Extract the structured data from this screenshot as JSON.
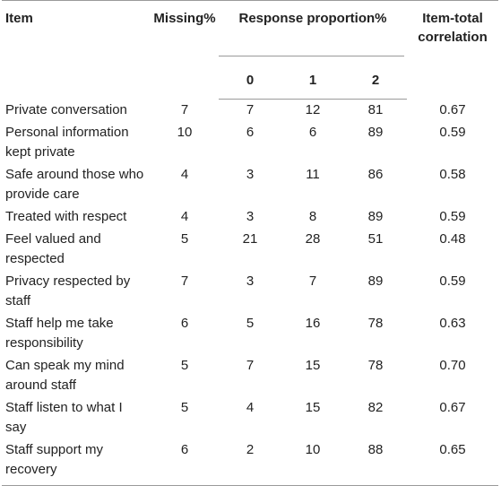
{
  "headers": {
    "item": "Item",
    "missing": "Missing%",
    "response": "Response proportion%",
    "r0": "0",
    "r1": "1",
    "r2": "2",
    "correlation_line1": "Item-total",
    "correlation_line2": "correlation"
  },
  "rows": [
    {
      "item": "Private conversation",
      "missing": "7",
      "r0": "7",
      "r1": "12",
      "r2": "81",
      "corr": "0.67"
    },
    {
      "item": "Personal information kept private",
      "missing": "10",
      "r0": "6",
      "r1": "6",
      "r2": "89",
      "corr": "0.59"
    },
    {
      "item": "Safe around those who provide care",
      "missing": "4",
      "r0": "3",
      "r1": "11",
      "r2": "86",
      "corr": "0.58"
    },
    {
      "item": "Treated with respect",
      "missing": "4",
      "r0": "3",
      "r1": "8",
      "r2": "89",
      "corr": "0.59"
    },
    {
      "item": "Feel valued and respected",
      "missing": "5",
      "r0": "21",
      "r1": "28",
      "r2": "51",
      "corr": "0.48"
    },
    {
      "item": "Privacy respected by staff",
      "missing": "7",
      "r0": "3",
      "r1": "7",
      "r2": "89",
      "corr": "0.59"
    },
    {
      "item": "Staff help me take responsibility",
      "missing": "6",
      "r0": "5",
      "r1": "16",
      "r2": "78",
      "corr": "0.63"
    },
    {
      "item": "Can speak my mind around staff",
      "missing": "5",
      "r0": "7",
      "r1": "15",
      "r2": "78",
      "corr": "0.70"
    },
    {
      "item": "Staff listen to what I say",
      "missing": "5",
      "r0": "4",
      "r1": "15",
      "r2": "82",
      "corr": "0.67"
    },
    {
      "item": "Staff support my recovery",
      "missing": "6",
      "r0": "2",
      "r1": "10",
      "r2": "88",
      "corr": "0.65"
    }
  ]
}
